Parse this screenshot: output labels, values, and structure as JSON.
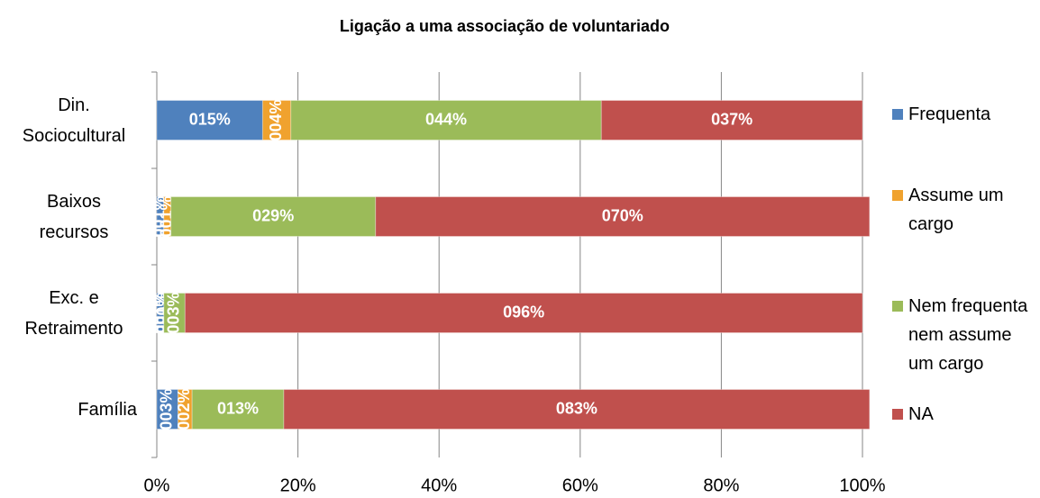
{
  "chart_data": {
    "type": "stacked_bar_horizontal",
    "title": "Ligação a uma associação de voluntariado",
    "categories": [
      "Din. Sociocultural",
      "Baixos recursos",
      "Exc. e Retraimento",
      "Família"
    ],
    "series": [
      {
        "name": "Frequenta",
        "color": "#4f81bd",
        "values": [
          15,
          1,
          1,
          3
        ],
        "value_labels": [
          "015%",
          "001%",
          "001%",
          "003%"
        ]
      },
      {
        "name": "Assume um cargo",
        "color": "#f0a22e",
        "values": [
          4,
          1,
          0,
          2
        ],
        "value_labels": [
          "004%",
          "001%",
          "000%",
          "002%"
        ]
      },
      {
        "name": "Nem frequenta nem assume um cargo",
        "color": "#9bbb59",
        "values": [
          44,
          29,
          3,
          13
        ],
        "value_labels": [
          "044%",
          "029%",
          "003%",
          "013%"
        ]
      },
      {
        "name": "NA",
        "color": "#c0504d",
        "values": [
          37,
          70,
          96,
          83
        ],
        "value_labels": [
          "037%",
          "070%",
          "096%",
          "083%"
        ]
      }
    ],
    "xlim": [
      0,
      100
    ],
    "xticks": [
      {
        "value": 0,
        "label": "0%"
      },
      {
        "value": 20,
        "label": "20%"
      },
      {
        "value": 40,
        "label": "40%"
      },
      {
        "value": 60,
        "label": "60%"
      },
      {
        "value": 80,
        "label": "80%"
      },
      {
        "value": 100,
        "label": "100%"
      }
    ],
    "grid": true,
    "legend": "right"
  }
}
